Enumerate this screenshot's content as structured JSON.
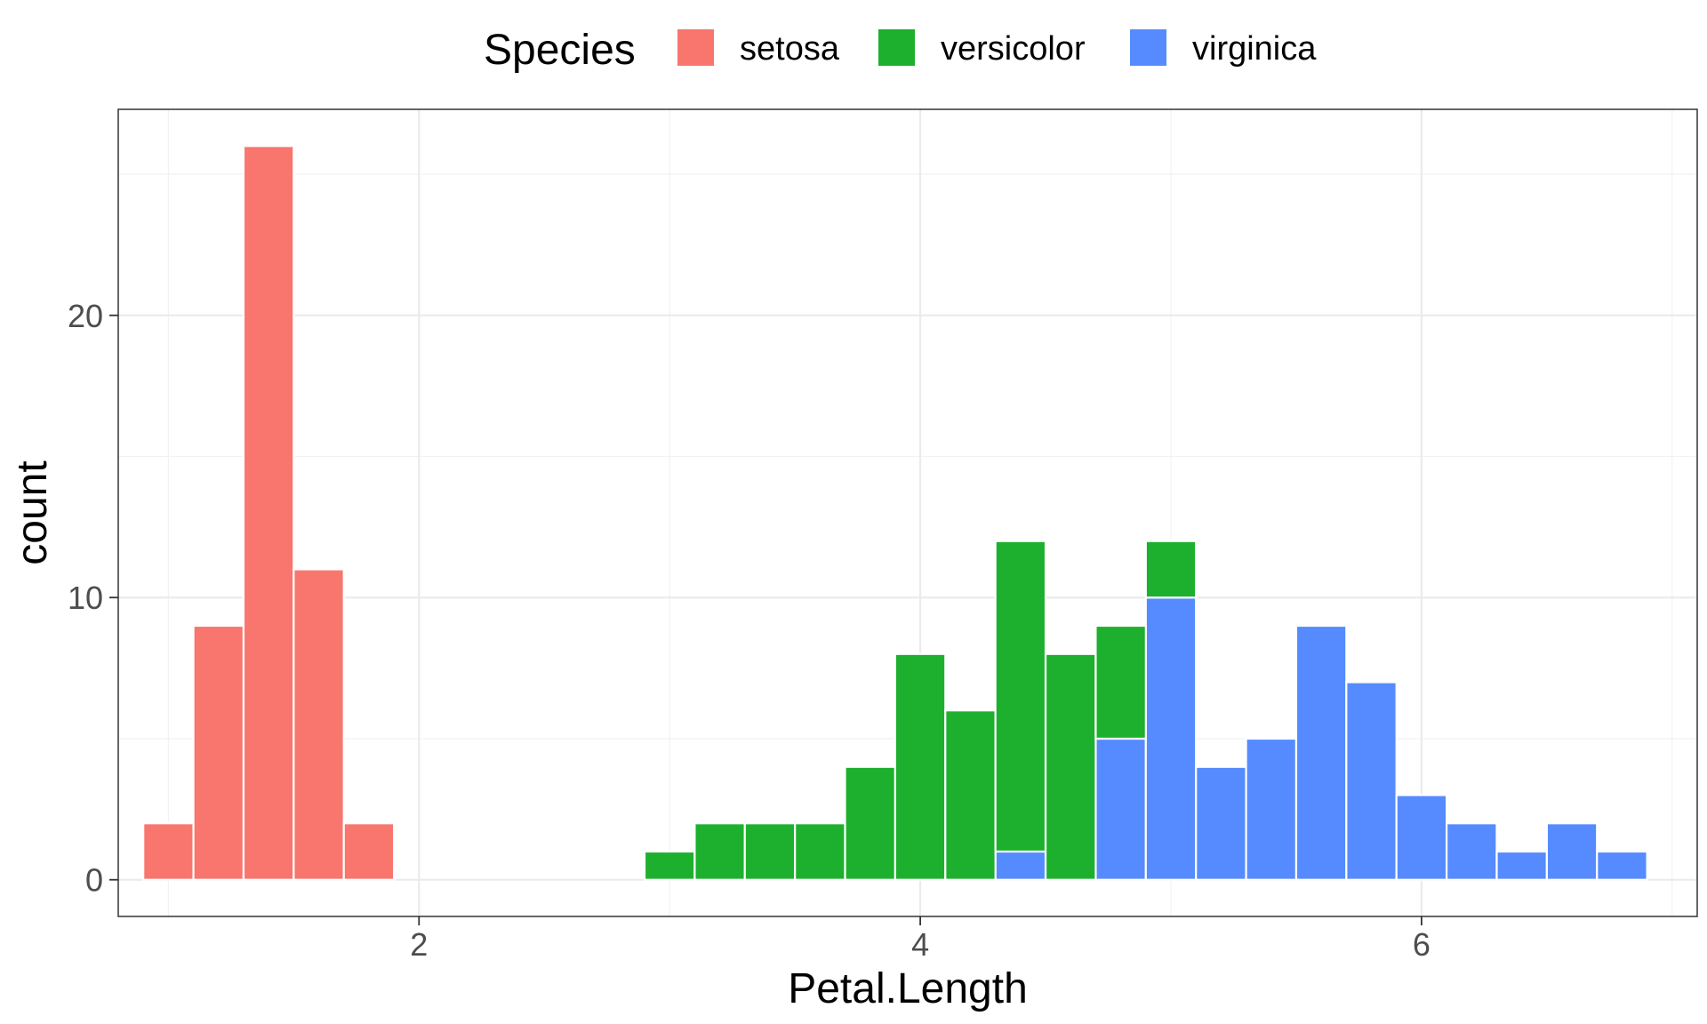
{
  "chart_data": {
    "type": "bar",
    "subtype": "stacked histogram",
    "xlabel": "Petal.Length",
    "ylabel": "count",
    "xlim": [
      0.8,
      7.1
    ],
    "ylim": [
      -1.3,
      27.3
    ],
    "x_ticks": [
      2,
      4,
      6
    ],
    "y_ticks": [
      0,
      10,
      20
    ],
    "grid": true,
    "bin_width": 0.2,
    "legend": {
      "title": "Species",
      "position": "top"
    },
    "series": [
      {
        "name": "setosa",
        "color": "#F8766D",
        "bins": [
          {
            "x": 1.0,
            "count": 2
          },
          {
            "x": 1.2,
            "count": 9
          },
          {
            "x": 1.4,
            "count": 26
          },
          {
            "x": 1.6,
            "count": 11
          },
          {
            "x": 1.8,
            "count": 2
          }
        ]
      },
      {
        "name": "versicolor",
        "color": "#1DB02E",
        "bins": [
          {
            "x": 3.0,
            "count": 1
          },
          {
            "x": 3.2,
            "count": 2
          },
          {
            "x": 3.4,
            "count": 2
          },
          {
            "x": 3.6,
            "count": 2
          },
          {
            "x": 3.8,
            "count": 4
          },
          {
            "x": 4.0,
            "count": 8
          },
          {
            "x": 4.2,
            "count": 6
          },
          {
            "x": 4.4,
            "count": 11
          },
          {
            "x": 4.6,
            "count": 8
          },
          {
            "x": 4.8,
            "count": 4
          },
          {
            "x": 5.0,
            "count": 2
          }
        ]
      },
      {
        "name": "virginica",
        "color": "#558BFF",
        "bins": [
          {
            "x": 4.4,
            "count": 1
          },
          {
            "x": 4.8,
            "count": 5
          },
          {
            "x": 5.0,
            "count": 10
          },
          {
            "x": 5.2,
            "count": 4
          },
          {
            "x": 5.4,
            "count": 5
          },
          {
            "x": 5.6,
            "count": 9
          },
          {
            "x": 5.8,
            "count": 7
          },
          {
            "x": 6.0,
            "count": 3
          },
          {
            "x": 6.2,
            "count": 2
          },
          {
            "x": 6.4,
            "count": 1
          },
          {
            "x": 6.6,
            "count": 2
          },
          {
            "x": 6.8,
            "count": 1
          }
        ]
      }
    ]
  }
}
